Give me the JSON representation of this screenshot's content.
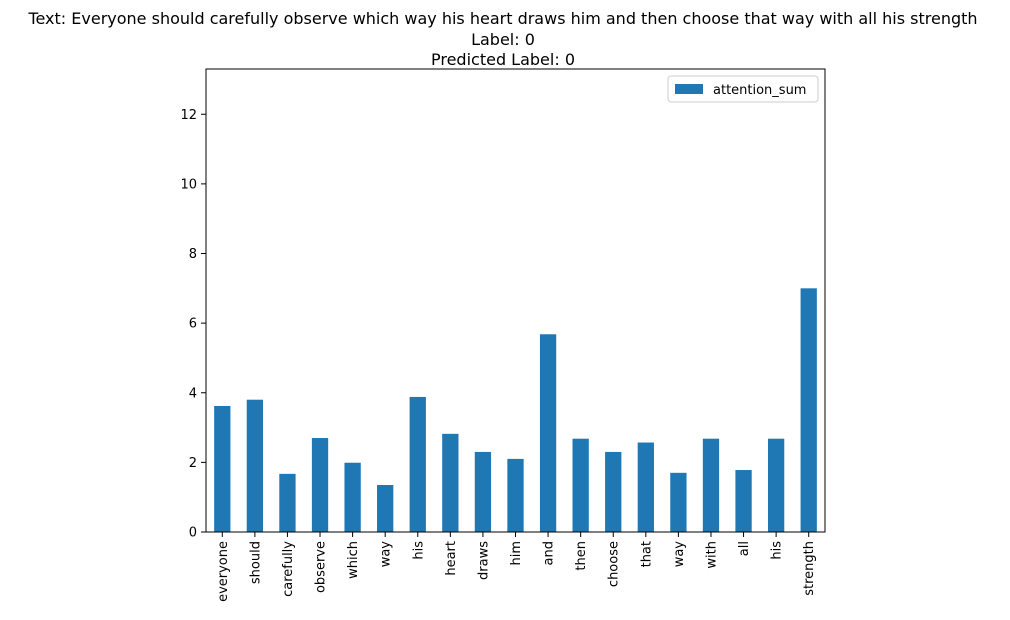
{
  "chart_data": {
    "type": "bar",
    "title_lines": [
      "Text: Everyone should carefully observe which way his heart draws him and then choose that way with all his strength",
      "Label: 0",
      "Predicted Label: 0"
    ],
    "xlabel": "",
    "ylabel": "",
    "categories": [
      "everyone",
      "should",
      "carefully",
      "observe",
      "which",
      "way",
      "his",
      "heart",
      "draws",
      "him",
      "and",
      "then",
      "choose",
      "that",
      "way",
      "with",
      "all",
      "his",
      "strength"
    ],
    "series": [
      {
        "name": "attention_sum",
        "values": [
          3.62,
          3.8,
          1.67,
          2.7,
          1.99,
          1.35,
          3.88,
          2.82,
          2.3,
          2.1,
          5.68,
          2.68,
          2.3,
          2.57,
          1.7,
          2.68,
          1.78,
          2.68,
          7.0
        ]
      }
    ],
    "ylim": [
      0,
      13.3
    ],
    "yticks": [
      0,
      2,
      4,
      6,
      8,
      10,
      12
    ],
    "legend": "top-right",
    "grid": false,
    "colors": {
      "bar": "#1f77b4",
      "axis": "#000000"
    }
  }
}
